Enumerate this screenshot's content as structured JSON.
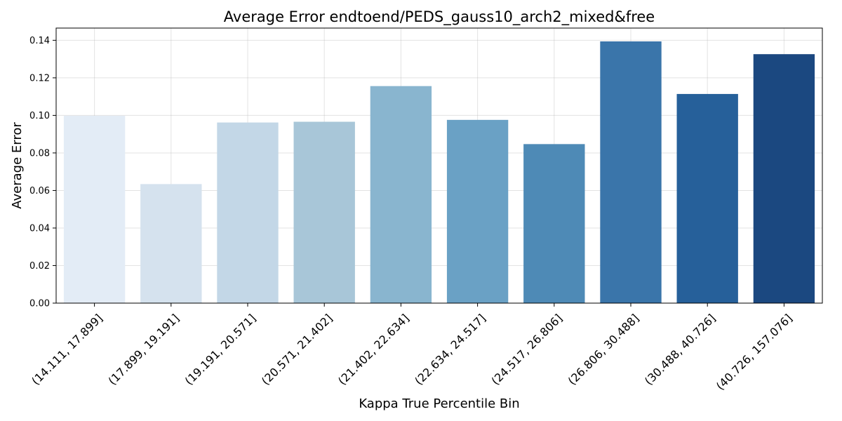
{
  "chart_data": {
    "type": "bar",
    "title": "Average Error endtoend/PEDS_gauss10_arch2_mixed&free",
    "xlabel": "Kappa True Percentile Bin",
    "ylabel": "Average Error",
    "categories": [
      "(14.111, 17.899]",
      "(17.899, 19.191]",
      "(19.191, 20.571]",
      "(20.571, 21.402]",
      "(21.402, 22.634]",
      "(22.634, 24.517]",
      "(24.517, 26.806]",
      "(26.806, 30.488]",
      "(30.488, 40.726]",
      "(40.726, 157.076]"
    ],
    "values": [
      0.0998,
      0.0634,
      0.0962,
      0.0966,
      0.1156,
      0.0976,
      0.0847,
      0.1394,
      0.1114,
      0.1326
    ],
    "colors": [
      "#e3ecf6",
      "#d5e2ee",
      "#c3d7e7",
      "#a8c6d8",
      "#89b5cf",
      "#6aa1c5",
      "#4e8ab6",
      "#3a75aa",
      "#26609a",
      "#1b4880"
    ],
    "ylim": [
      0,
      0.1465
    ],
    "yticks": [
      "0.00",
      "0.02",
      "0.04",
      "0.06",
      "0.08",
      "0.10",
      "0.12",
      "0.14"
    ],
    "grid": true,
    "legend": "none"
  }
}
